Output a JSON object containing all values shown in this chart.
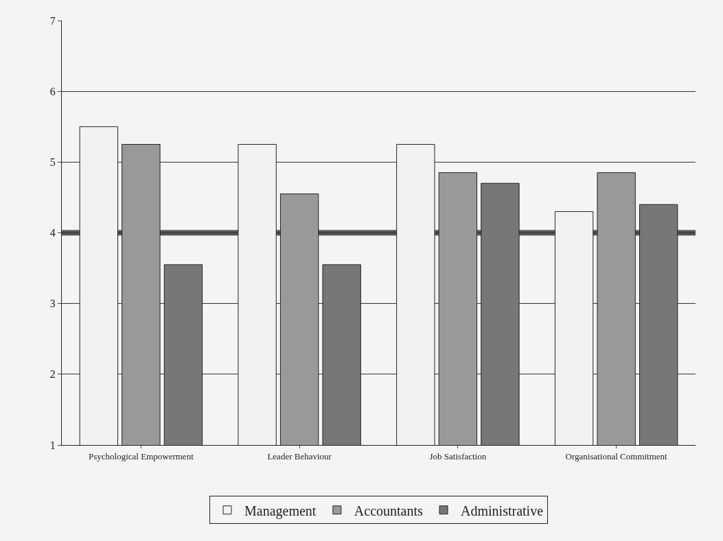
{
  "chart_data": {
    "type": "bar",
    "categories": [
      "Psychological Empowerment",
      "Leader Behaviour",
      "Job Satisfaction",
      "Organisational Commitment"
    ],
    "series": [
      {
        "name": "Management",
        "color": "#f2f2f2",
        "values": [
          5.5,
          5.25,
          5.25,
          4.3
        ]
      },
      {
        "name": "Accountants",
        "color": "#999999",
        "values": [
          5.25,
          4.55,
          4.85,
          4.85
        ]
      },
      {
        "name": "Administrative",
        "color": "#777777",
        "values": [
          3.55,
          3.55,
          4.7,
          4.4
        ]
      }
    ],
    "ylim": [
      1,
      7
    ],
    "yticks": [
      1,
      2,
      3,
      4,
      5,
      6,
      7
    ],
    "ref_lines": [
      {
        "axis": "y",
        "value": 4,
        "color": "#555555"
      }
    ],
    "grid": "y",
    "legend": "bottom"
  }
}
